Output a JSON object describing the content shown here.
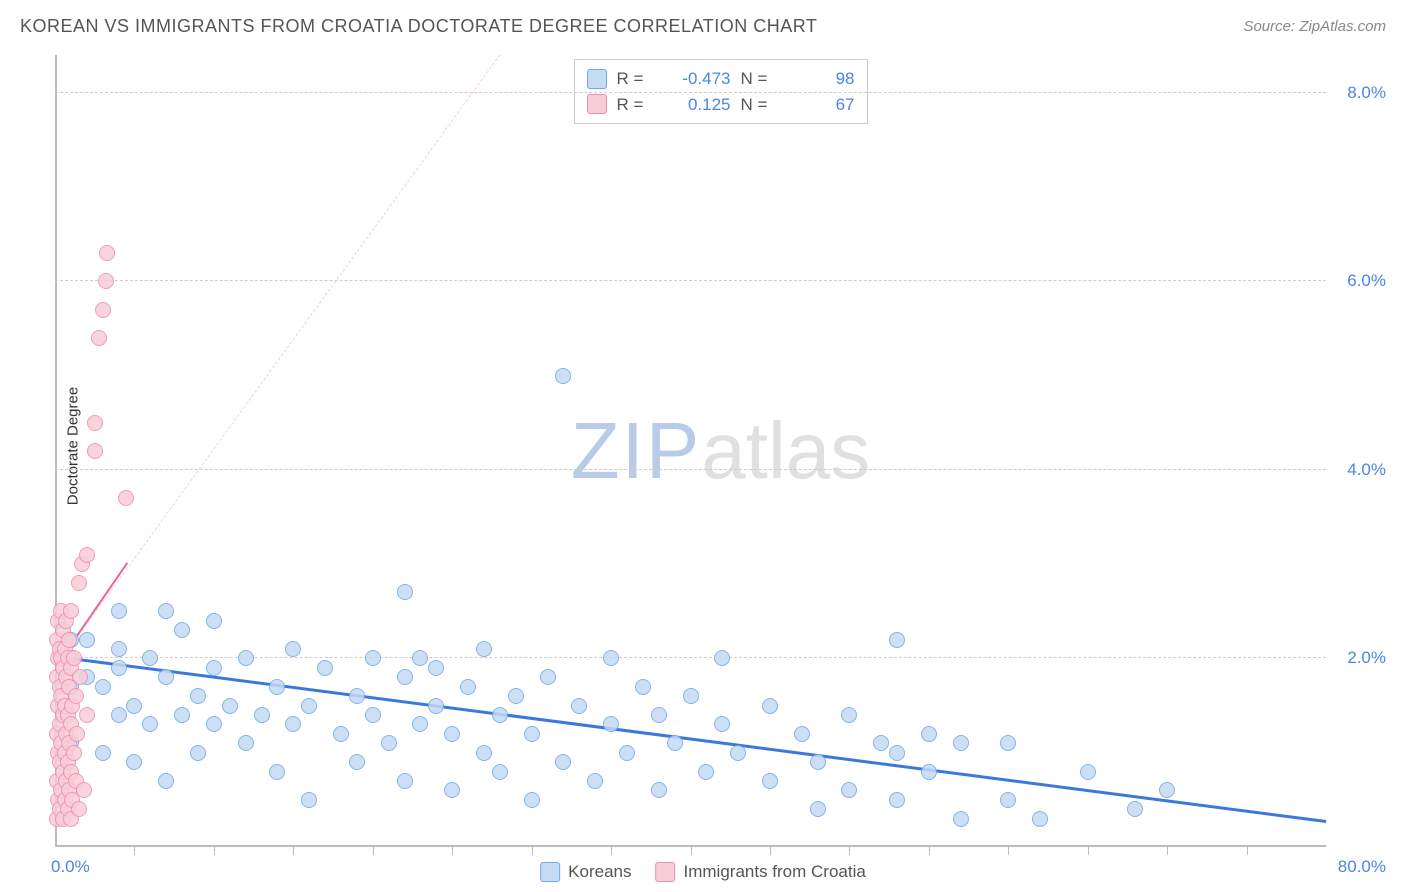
{
  "title": "KOREAN VS IMMIGRANTS FROM CROATIA DOCTORATE DEGREE CORRELATION CHART",
  "source_label": "Source: ZipAtlas.com",
  "y_axis_label": "Doctorate Degree",
  "watermark": {
    "part1": "ZIP",
    "part2": "atlas"
  },
  "chart": {
    "type": "scatter",
    "background_color": "#ffffff",
    "grid_color": "#cccccc",
    "axis_color": "#bbbbbb",
    "label_color": "#4a86e8",
    "xlim": [
      0,
      80
    ],
    "ylim": [
      0,
      8.4
    ],
    "x_origin_label": "0.0%",
    "x_max_label": "80.0%",
    "y_ticks": [
      {
        "v": 2.0,
        "label": "2.0%"
      },
      {
        "v": 4.0,
        "label": "4.0%"
      },
      {
        "v": 6.0,
        "label": "6.0%"
      },
      {
        "v": 8.0,
        "label": "8.0%"
      }
    ],
    "x_minor_ticks": [
      5,
      10,
      15,
      20,
      25,
      30,
      35,
      40,
      45,
      50,
      55,
      60,
      65,
      70,
      75
    ],
    "marker_radius": 8,
    "marker_stroke_width": 1.5,
    "series": [
      {
        "name": "Koreans",
        "fill": "#c5daf3",
        "stroke": "#6fa8e8",
        "trend_color": "#3b78dc",
        "trend_width": 3,
        "trend_dash": false,
        "R": "-0.473",
        "N": "98",
        "trend_p1": {
          "x": 0,
          "y": 2.0
        },
        "trend_p2": {
          "x": 80,
          "y": 0.25
        },
        "points": [
          {
            "x": 1,
            "y": 1.1
          },
          {
            "x": 1,
            "y": 1.7
          },
          {
            "x": 1,
            "y": 2.0
          },
          {
            "x": 1,
            "y": 2.2
          },
          {
            "x": 2,
            "y": 1.8
          },
          {
            "x": 2,
            "y": 2.2
          },
          {
            "x": 3,
            "y": 1.0
          },
          {
            "x": 3,
            "y": 1.7
          },
          {
            "x": 4,
            "y": 1.4
          },
          {
            "x": 4,
            "y": 1.9
          },
          {
            "x": 4,
            "y": 2.1
          },
          {
            "x": 4,
            "y": 2.5
          },
          {
            "x": 5,
            "y": 0.9
          },
          {
            "x": 5,
            "y": 1.5
          },
          {
            "x": 6,
            "y": 1.3
          },
          {
            "x": 6,
            "y": 2.0
          },
          {
            "x": 7,
            "y": 0.7
          },
          {
            "x": 7,
            "y": 1.8
          },
          {
            "x": 7,
            "y": 2.5
          },
          {
            "x": 8,
            "y": 1.4
          },
          {
            "x": 8,
            "y": 2.3
          },
          {
            "x": 9,
            "y": 1.0
          },
          {
            "x": 9,
            "y": 1.6
          },
          {
            "x": 10,
            "y": 1.3
          },
          {
            "x": 10,
            "y": 1.9
          },
          {
            "x": 10,
            "y": 2.4
          },
          {
            "x": 11,
            "y": 1.5
          },
          {
            "x": 12,
            "y": 1.1
          },
          {
            "x": 12,
            "y": 2.0
          },
          {
            "x": 13,
            "y": 1.4
          },
          {
            "x": 14,
            "y": 0.8
          },
          {
            "x": 14,
            "y": 1.7
          },
          {
            "x": 15,
            "y": 1.3
          },
          {
            "x": 15,
            "y": 2.1
          },
          {
            "x": 16,
            "y": 0.5
          },
          {
            "x": 16,
            "y": 1.5
          },
          {
            "x": 17,
            "y": 1.9
          },
          {
            "x": 18,
            "y": 1.2
          },
          {
            "x": 19,
            "y": 0.9
          },
          {
            "x": 19,
            "y": 1.6
          },
          {
            "x": 20,
            "y": 1.4
          },
          {
            "x": 20,
            "y": 2.0
          },
          {
            "x": 21,
            "y": 1.1
          },
          {
            "x": 22,
            "y": 0.7
          },
          {
            "x": 22,
            "y": 1.8
          },
          {
            "x": 22,
            "y": 2.7
          },
          {
            "x": 23,
            "y": 1.3
          },
          {
            "x": 23,
            "y": 2.0
          },
          {
            "x": 24,
            "y": 1.5
          },
          {
            "x": 24,
            "y": 1.9
          },
          {
            "x": 25,
            "y": 0.6
          },
          {
            "x": 25,
            "y": 1.2
          },
          {
            "x": 26,
            "y": 1.7
          },
          {
            "x": 27,
            "y": 1.0
          },
          {
            "x": 27,
            "y": 2.1
          },
          {
            "x": 28,
            "y": 0.8
          },
          {
            "x": 28,
            "y": 1.4
          },
          {
            "x": 29,
            "y": 1.6
          },
          {
            "x": 30,
            "y": 0.5
          },
          {
            "x": 30,
            "y": 1.2
          },
          {
            "x": 31,
            "y": 1.8
          },
          {
            "x": 32,
            "y": 0.9
          },
          {
            "x": 32,
            "y": 5.0
          },
          {
            "x": 33,
            "y": 1.5
          },
          {
            "x": 34,
            "y": 0.7
          },
          {
            "x": 35,
            "y": 1.3
          },
          {
            "x": 35,
            "y": 2.0
          },
          {
            "x": 36,
            "y": 1.0
          },
          {
            "x": 37,
            "y": 1.7
          },
          {
            "x": 38,
            "y": 0.6
          },
          {
            "x": 38,
            "y": 1.4
          },
          {
            "x": 39,
            "y": 1.1
          },
          {
            "x": 40,
            "y": 1.6
          },
          {
            "x": 41,
            "y": 0.8
          },
          {
            "x": 42,
            "y": 1.3
          },
          {
            "x": 42,
            "y": 2.0
          },
          {
            "x": 43,
            "y": 1.0
          },
          {
            "x": 45,
            "y": 0.7
          },
          {
            "x": 45,
            "y": 1.5
          },
          {
            "x": 47,
            "y": 1.2
          },
          {
            "x": 48,
            "y": 0.4
          },
          {
            "x": 48,
            "y": 0.9
          },
          {
            "x": 50,
            "y": 0.6
          },
          {
            "x": 50,
            "y": 1.4
          },
          {
            "x": 52,
            "y": 1.1
          },
          {
            "x": 53,
            "y": 0.5
          },
          {
            "x": 53,
            "y": 1.0
          },
          {
            "x": 53,
            "y": 2.2
          },
          {
            "x": 55,
            "y": 0.8
          },
          {
            "x": 55,
            "y": 1.2
          },
          {
            "x": 57,
            "y": 0.3
          },
          {
            "x": 57,
            "y": 1.1
          },
          {
            "x": 60,
            "y": 0.5
          },
          {
            "x": 60,
            "y": 1.1
          },
          {
            "x": 62,
            "y": 0.3
          },
          {
            "x": 65,
            "y": 0.8
          },
          {
            "x": 68,
            "y": 0.4
          },
          {
            "x": 70,
            "y": 0.6
          }
        ]
      },
      {
        "name": "Immigrants from Croatia",
        "fill": "#f8cdd8",
        "stroke": "#ec8fa8",
        "trend_color": "#e86a8f",
        "trend_width": 2,
        "trend_dash": false,
        "trend_dashed_ext": true,
        "R": "0.125",
        "N": "67",
        "trend_p1": {
          "x": 0,
          "y": 1.9
        },
        "trend_p2": {
          "x": 4.5,
          "y": 3.0
        },
        "trend_ext_p1": {
          "x": 0,
          "y": 1.9
        },
        "trend_ext_p2": {
          "x": 28,
          "y": 8.4
        },
        "points": [
          {
            "x": 0.1,
            "y": 0.3
          },
          {
            "x": 0.1,
            "y": 0.7
          },
          {
            "x": 0.1,
            "y": 1.2
          },
          {
            "x": 0.1,
            "y": 1.8
          },
          {
            "x": 0.1,
            "y": 2.2
          },
          {
            "x": 0.2,
            "y": 0.5
          },
          {
            "x": 0.2,
            "y": 1.0
          },
          {
            "x": 0.2,
            "y": 1.5
          },
          {
            "x": 0.2,
            "y": 2.0
          },
          {
            "x": 0.2,
            "y": 2.4
          },
          {
            "x": 0.3,
            "y": 0.4
          },
          {
            "x": 0.3,
            "y": 0.9
          },
          {
            "x": 0.3,
            "y": 1.3
          },
          {
            "x": 0.3,
            "y": 1.7
          },
          {
            "x": 0.3,
            "y": 2.1
          },
          {
            "x": 0.4,
            "y": 0.6
          },
          {
            "x": 0.4,
            "y": 1.1
          },
          {
            "x": 0.4,
            "y": 1.6
          },
          {
            "x": 0.4,
            "y": 2.0
          },
          {
            "x": 0.4,
            "y": 2.5
          },
          {
            "x": 0.5,
            "y": 0.3
          },
          {
            "x": 0.5,
            "y": 0.8
          },
          {
            "x": 0.5,
            "y": 1.4
          },
          {
            "x": 0.5,
            "y": 1.9
          },
          {
            "x": 0.5,
            "y": 2.3
          },
          {
            "x": 0.6,
            "y": 0.5
          },
          {
            "x": 0.6,
            "y": 1.0
          },
          {
            "x": 0.6,
            "y": 1.5
          },
          {
            "x": 0.6,
            "y": 2.1
          },
          {
            "x": 0.7,
            "y": 0.7
          },
          {
            "x": 0.7,
            "y": 1.2
          },
          {
            "x": 0.7,
            "y": 1.8
          },
          {
            "x": 0.7,
            "y": 2.4
          },
          {
            "x": 0.8,
            "y": 0.4
          },
          {
            "x": 0.8,
            "y": 0.9
          },
          {
            "x": 0.8,
            "y": 1.4
          },
          {
            "x": 0.8,
            "y": 2.0
          },
          {
            "x": 0.9,
            "y": 0.6
          },
          {
            "x": 0.9,
            "y": 1.1
          },
          {
            "x": 0.9,
            "y": 1.7
          },
          {
            "x": 0.9,
            "y": 2.2
          },
          {
            "x": 1.0,
            "y": 0.3
          },
          {
            "x": 1.0,
            "y": 0.8
          },
          {
            "x": 1.0,
            "y": 1.3
          },
          {
            "x": 1.0,
            "y": 1.9
          },
          {
            "x": 1.0,
            "y": 2.5
          },
          {
            "x": 1.1,
            "y": 0.5
          },
          {
            "x": 1.1,
            "y": 1.5
          },
          {
            "x": 1.2,
            "y": 1.0
          },
          {
            "x": 1.2,
            "y": 2.0
          },
          {
            "x": 1.3,
            "y": 0.7
          },
          {
            "x": 1.3,
            "y": 1.6
          },
          {
            "x": 1.4,
            "y": 1.2
          },
          {
            "x": 1.5,
            "y": 0.4
          },
          {
            "x": 1.5,
            "y": 2.8
          },
          {
            "x": 1.6,
            "y": 1.8
          },
          {
            "x": 1.7,
            "y": 3.0
          },
          {
            "x": 1.8,
            "y": 0.6
          },
          {
            "x": 2.0,
            "y": 1.4
          },
          {
            "x": 2.0,
            "y": 3.1
          },
          {
            "x": 2.5,
            "y": 4.2
          },
          {
            "x": 2.5,
            "y": 4.5
          },
          {
            "x": 2.8,
            "y": 5.4
          },
          {
            "x": 3.0,
            "y": 5.7
          },
          {
            "x": 3.2,
            "y": 6.0
          },
          {
            "x": 3.3,
            "y": 6.3
          },
          {
            "x": 4.5,
            "y": 3.7
          }
        ]
      }
    ]
  },
  "legend_top": {
    "r_label": "R =",
    "n_label": "N ="
  },
  "legend_bottom": {
    "series1_label": "Koreans",
    "series2_label": "Immigrants from Croatia"
  }
}
